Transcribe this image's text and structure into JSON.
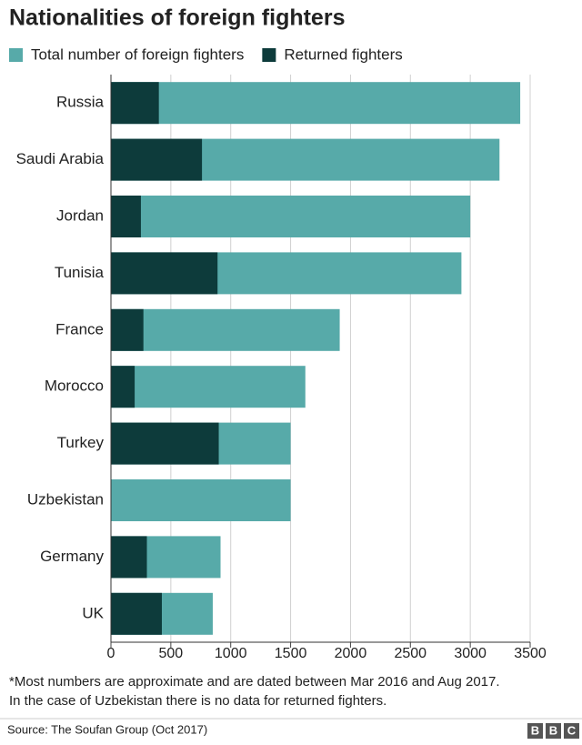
{
  "chart_data": {
    "type": "bar",
    "orientation": "horizontal",
    "title": "Nationalities of foreign fighters",
    "categories": [
      "Russia",
      "Saudi Arabia",
      "Jordan",
      "Tunisia",
      "France",
      "Morocco",
      "Turkey",
      "Uzbekistan",
      "Germany",
      "UK"
    ],
    "series": [
      {
        "name": "Total number of foreign fighters",
        "color": "#57aaa9",
        "values": [
          3417,
          3244,
          3000,
          2926,
          1910,
          1623,
          1500,
          1500,
          915,
          850
        ]
      },
      {
        "name": "Returned fighters",
        "color": "#0d3b3b",
        "values": [
          400,
          760,
          250,
          890,
          271,
          198,
          900,
          null,
          300,
          425
        ]
      }
    ],
    "xlim": [
      0,
      3500
    ],
    "xticks": [
      0,
      500,
      1000,
      1500,
      2000,
      2500,
      3000,
      3500
    ],
    "grid": true,
    "legend": "top",
    "notes": [
      "*Most numbers are approximate and are dated between Mar 2016 and Aug 2017.",
      "In the case of Uzbekistan there is no data for returned fighters."
    ],
    "source": "Source: The Soufan Group (Oct 2017)",
    "logo": [
      "B",
      "B",
      "C"
    ]
  }
}
